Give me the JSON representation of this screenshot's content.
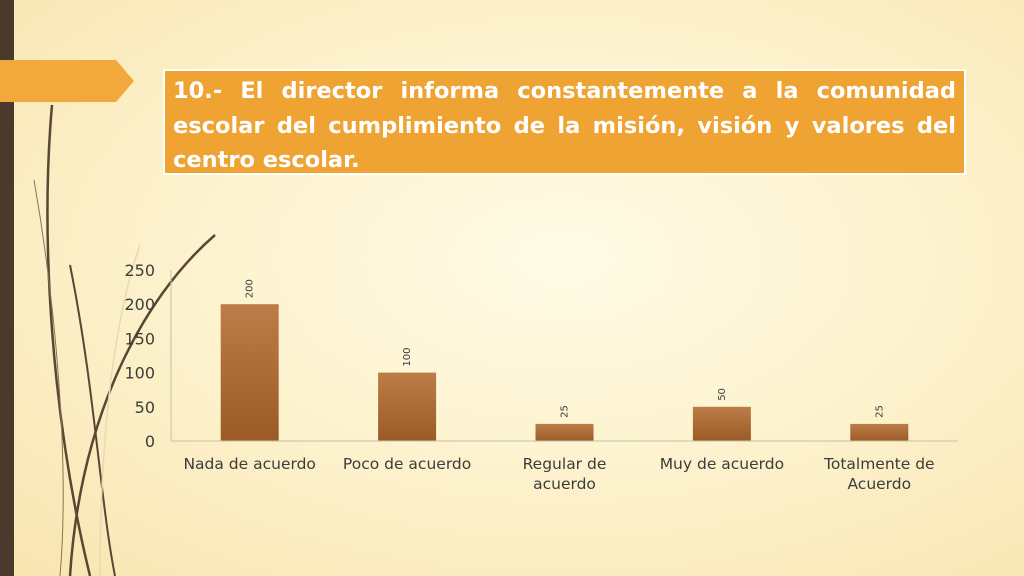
{
  "slide": {
    "title": "10.- El director informa constantemente a la comunidad escolar del cumplimiento de la misión, visión y valores del centro escolar."
  },
  "colors": {
    "title_box": "#efa332",
    "bar": "#b0703b",
    "side_bar": "#4b3a2b",
    "arrow_tab": "#f2a93b"
  },
  "chart_data": {
    "type": "bar",
    "categories": [
      [
        "Nada de acuerdo"
      ],
      [
        "Poco de acuerdo"
      ],
      [
        "Regular de",
        "acuerdo"
      ],
      [
        "Muy de acuerdo"
      ],
      [
        "Totalmente de",
        "Acuerdo"
      ]
    ],
    "values": [
      200,
      100,
      25,
      50,
      25
    ],
    "data_labels": [
      "200",
      "100",
      "25",
      "50",
      "25"
    ],
    "yticks": [
      "0",
      "50",
      "100",
      "150",
      "200",
      "250"
    ],
    "ylim": [
      0,
      250
    ],
    "grid": false,
    "legend": "none"
  }
}
